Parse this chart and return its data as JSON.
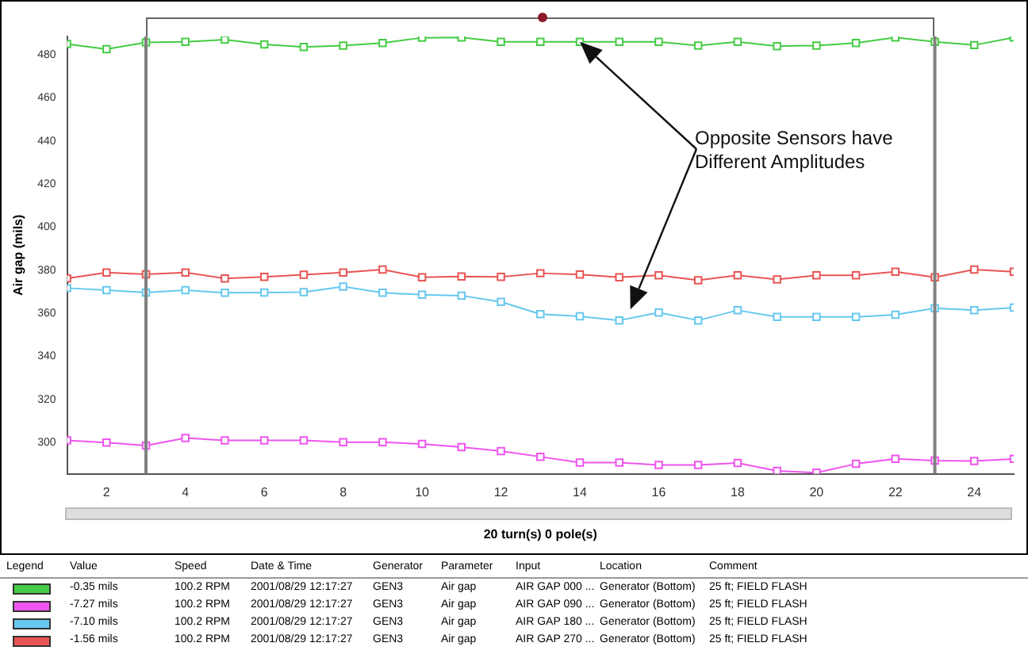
{
  "chart_data": {
    "type": "line",
    "xlabel": "20 turn(s) 0 pole(s)",
    "ylabel": "Air gap (mils)",
    "x": [
      1,
      2,
      3,
      4,
      5,
      6,
      7,
      8,
      9,
      10,
      11,
      12,
      13,
      14,
      15,
      16,
      17,
      18,
      19,
      20,
      21,
      22,
      23,
      24,
      25
    ],
    "xlim": [
      1,
      25
    ],
    "xticks": [
      2,
      4,
      6,
      8,
      10,
      12,
      14,
      16,
      18,
      20,
      22,
      24
    ],
    "ylim": [
      285.5,
      488.5
    ],
    "yticks": [
      300,
      320,
      340,
      360,
      380,
      400,
      420,
      440,
      460,
      480
    ],
    "marker": "square",
    "grid": false,
    "series": [
      {
        "color": "#44cc44",
        "values": [
          485,
          482.6,
          485.7,
          486,
          487,
          484.8,
          483.6,
          484.3,
          485.5,
          487.9,
          488,
          486,
          486,
          486,
          486,
          486,
          484.3,
          486,
          484,
          484.3,
          485.5,
          488,
          486,
          484.5,
          488
        ]
      },
      {
        "color": "#ee55ee",
        "values": [
          301,
          300,
          298.6,
          302.1,
          301,
          301,
          301,
          300.2,
          300.2,
          299.3,
          297.9,
          296,
          293.4,
          290.7,
          290.7,
          289.6,
          289.6,
          290.5,
          286.8,
          286,
          290.1,
          292.4,
          291.6,
          291.4,
          292.4
        ]
      },
      {
        "color": "#66c8ee",
        "values": [
          371.7,
          370.7,
          369.6,
          370.7,
          369.5,
          369.6,
          369.8,
          372.4,
          369.5,
          368.6,
          368.2,
          365.3,
          359.6,
          358.6,
          356.7,
          360.3,
          356.7,
          361.4,
          358.3,
          358.3,
          358.3,
          359.3,
          362.4,
          361.4,
          362.6
        ]
      },
      {
        "color": "#e85555",
        "values": [
          376.2,
          378.9,
          378.1,
          378.9,
          376.2,
          376.9,
          377.9,
          378.9,
          380.3,
          376.7,
          377.1,
          376.9,
          378.6,
          378,
          376.7,
          377.6,
          375.3,
          377.6,
          375.7,
          377.6,
          377.6,
          379.3,
          376.7,
          380.3,
          379.3
        ]
      }
    ],
    "ref_lines": [
      {
        "axis": "x",
        "value": 3,
        "color": "#808080"
      },
      {
        "axis": "x",
        "value": 23,
        "color": "#808080"
      }
    ],
    "annotations": [
      "Opposite Sensors have Different Amplitudes",
      "Legend",
      "Value",
      "Speed",
      "Date & Time",
      "Generator",
      "Parameter",
      "Input",
      "Location",
      "Comment",
      "-0.35 mils",
      "100.2 RPM",
      "2001/08/29 12:17:27",
      "GEN3",
      "Air gap",
      "AIR GAP 000 ...",
      "Generator (Bottom)",
      "25 ft; FIELD FLASH",
      "-7.27 mils",
      "100.2 RPM",
      "2001/08/29 12:17:27",
      "GEN3",
      "Air gap",
      "AIR GAP 090 ...",
      "Generator (Bottom)",
      "25 ft; FIELD FLASH",
      "-7.10 mils",
      "100.2 RPM",
      "2001/08/29 12:17:27",
      "GEN3",
      "Air gap",
      "AIR GAP 180 ...",
      "Generator (Bottom)",
      "25 ft; FIELD FLASH",
      "-1.56 mils",
      "100.2 RPM",
      "2001/08/29 12:17:27",
      "GEN3",
      "Air gap",
      "AIR GAP 270 ...",
      "Generator (Bottom)",
      "25 ft; FIELD FLASH"
    ]
  }
}
